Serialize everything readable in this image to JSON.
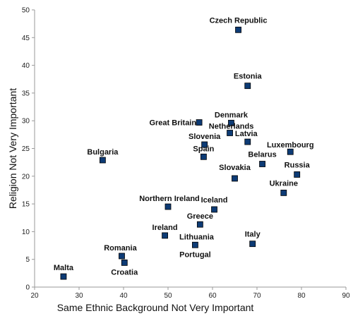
{
  "chart_data": {
    "type": "scatter",
    "xlabel": "Same Ethnic Background Not Very Important",
    "ylabel": "Religion Not Very Important",
    "xlim": [
      20,
      90
    ],
    "ylim": [
      0,
      50
    ],
    "x_ticks": [
      20,
      30,
      40,
      50,
      60,
      70,
      80,
      90
    ],
    "y_ticks": [
      0,
      5,
      10,
      15,
      20,
      25,
      30,
      35,
      40,
      45,
      50
    ],
    "grid": false,
    "points": [
      {
        "label": "Czech Republic",
        "x": 65.8,
        "y": 46.4
      },
      {
        "label": "Estonia",
        "x": 67.9,
        "y": 36.3
      },
      {
        "label": "Great Britain",
        "x": 57.0,
        "y": 29.7
      },
      {
        "label": "Denmark",
        "x": 64.2,
        "y": 29.6
      },
      {
        "label": "Netherlands",
        "x": 63.9,
        "y": 27.8
      },
      {
        "label": "Latvia",
        "x": 67.9,
        "y": 26.2
      },
      {
        "label": "Slovenia",
        "x": 58.2,
        "y": 25.7
      },
      {
        "label": "Luxembourg",
        "x": 77.5,
        "y": 24.4
      },
      {
        "label": "Spain",
        "x": 58.0,
        "y": 23.5
      },
      {
        "label": "Bulgaria",
        "x": 35.3,
        "y": 22.9
      },
      {
        "label": "Belarus",
        "x": 71.2,
        "y": 22.2
      },
      {
        "label": "Russia",
        "x": 79.0,
        "y": 20.3
      },
      {
        "label": "Slovakia",
        "x": 65.0,
        "y": 19.6
      },
      {
        "label": "Ukraine",
        "x": 76.0,
        "y": 17.0
      },
      {
        "label": "Northern Ireland",
        "x": 50.0,
        "y": 14.5
      },
      {
        "label": "Iceland",
        "x": 60.4,
        "y": 14.0
      },
      {
        "label": "Greece",
        "x": 57.2,
        "y": 11.3
      },
      {
        "label": "Ireland",
        "x": 49.3,
        "y": 9.3
      },
      {
        "label": "Lithuania",
        "x": 56.1,
        "y": 7.6
      },
      {
        "label": "Portugal",
        "x": 56.1,
        "y": 7.6
      },
      {
        "label": "Italy",
        "x": 69.0,
        "y": 7.8
      },
      {
        "label": "Romania",
        "x": 39.6,
        "y": 5.6
      },
      {
        "label": "Croatia",
        "x": 40.2,
        "y": 4.4
      },
      {
        "label": "Malta",
        "x": 26.5,
        "y": 1.9
      }
    ]
  }
}
